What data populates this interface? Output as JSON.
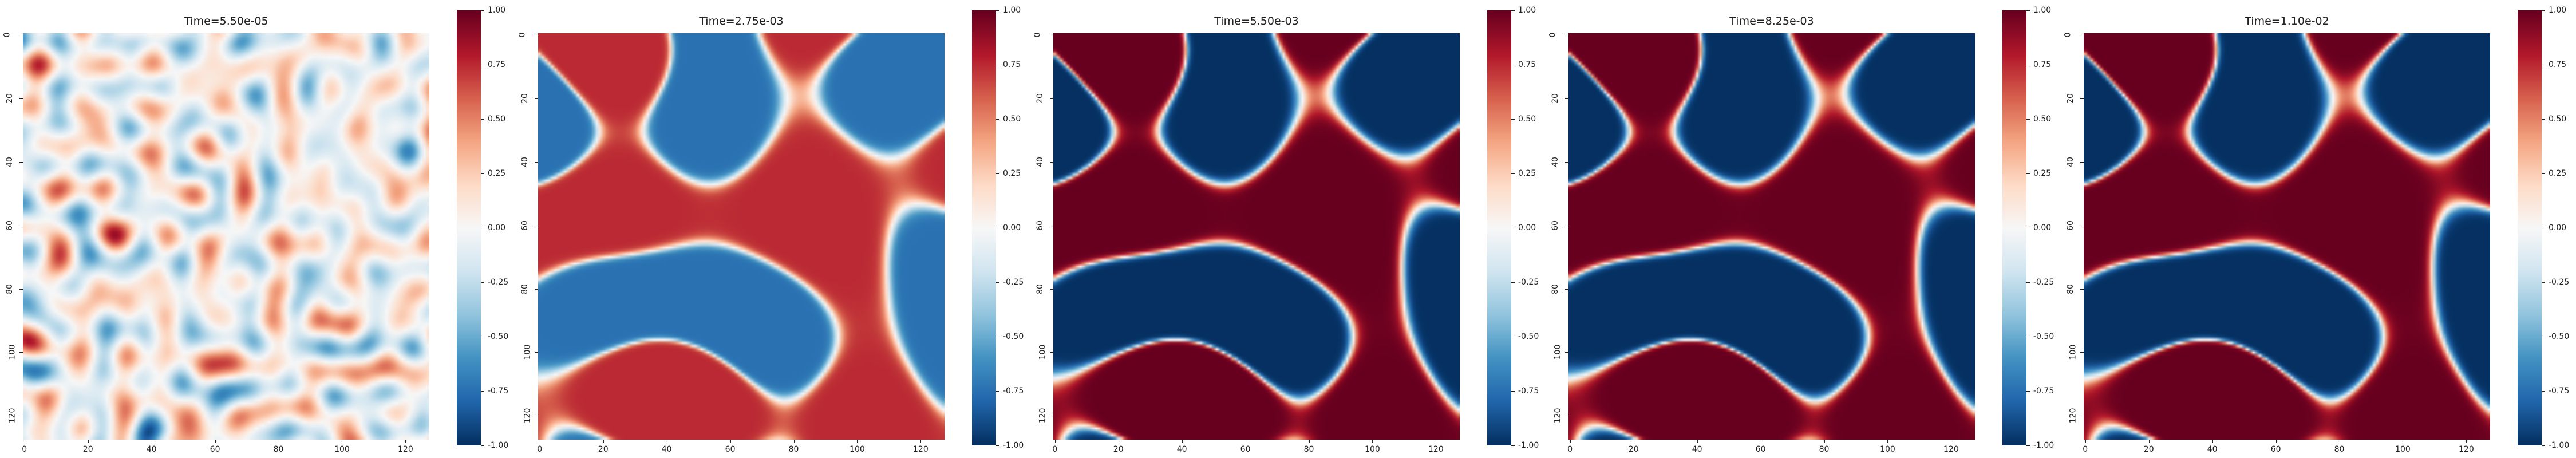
{
  "chart_data": [
    {
      "type": "heatmap",
      "title": "Time=5.50e-05",
      "field": {
        "shape": [
          128,
          128
        ],
        "pattern": "fine noise",
        "amplitude": 0.35
      },
      "x_ticks": [
        "0",
        "20",
        "40",
        "60",
        "80",
        "100",
        "120"
      ],
      "y_ticks": [
        "0",
        "20",
        "40",
        "60",
        "80",
        "100",
        "120"
      ],
      "xlim": [
        0,
        128
      ],
      "ylim": [
        0,
        128
      ],
      "colorbar": {
        "cmap": "RdBu_r",
        "vmin": -1.0,
        "vmax": 1.0,
        "ticks": [
          "1.00",
          "0.75",
          "0.50",
          "0.25",
          "0.00",
          "-0.25",
          "-0.50",
          "-0.75",
          "-1.00"
        ]
      }
    },
    {
      "type": "heatmap",
      "title": "Time=2.75e-03",
      "field": {
        "shape": [
          128,
          128
        ],
        "pattern": "labyrinthine domains",
        "amplitude": 0.75
      },
      "x_ticks": [
        "0",
        "20",
        "40",
        "60",
        "80",
        "100",
        "120"
      ],
      "y_ticks": [
        "0",
        "20",
        "40",
        "60",
        "80",
        "100",
        "120"
      ],
      "xlim": [
        0,
        128
      ],
      "ylim": [
        0,
        128
      ],
      "colorbar": {
        "cmap": "RdBu_r",
        "vmin": -1.0,
        "vmax": 1.0,
        "ticks": [
          "1.00",
          "0.75",
          "0.50",
          "0.25",
          "0.00",
          "-0.25",
          "-0.50",
          "-0.75",
          "-1.00"
        ]
      }
    },
    {
      "type": "heatmap",
      "title": "Time=5.50e-03",
      "field": {
        "shape": [
          128,
          128
        ],
        "pattern": "labyrinthine domains",
        "amplitude": 1.0
      },
      "x_ticks": [
        "0",
        "20",
        "40",
        "60",
        "80",
        "100",
        "120"
      ],
      "y_ticks": [
        "0",
        "20",
        "40",
        "60",
        "80",
        "100",
        "120"
      ],
      "xlim": [
        0,
        128
      ],
      "ylim": [
        0,
        128
      ],
      "colorbar": {
        "cmap": "RdBu_r",
        "vmin": -1.0,
        "vmax": 1.0,
        "ticks": [
          "1.00",
          "0.75",
          "0.50",
          "0.25",
          "0.00",
          "-0.25",
          "-0.50",
          "-0.75",
          "-1.00"
        ]
      }
    },
    {
      "type": "heatmap",
      "title": "Time=8.25e-03",
      "field": {
        "shape": [
          128,
          128
        ],
        "pattern": "labyrinthine domains",
        "amplitude": 1.0
      },
      "x_ticks": [
        "0",
        "20",
        "40",
        "60",
        "80",
        "100",
        "120"
      ],
      "y_ticks": [
        "0",
        "20",
        "40",
        "60",
        "80",
        "100",
        "120"
      ],
      "xlim": [
        0,
        128
      ],
      "ylim": [
        0,
        128
      ],
      "colorbar": {
        "cmap": "RdBu_r",
        "vmin": -1.0,
        "vmax": 1.0,
        "ticks": [
          "1.00",
          "0.75",
          "0.50",
          "0.25",
          "0.00",
          "-0.25",
          "-0.50",
          "-0.75",
          "-1.00"
        ]
      }
    },
    {
      "type": "heatmap",
      "title": "Time=1.10e-02",
      "field": {
        "shape": [
          128,
          128
        ],
        "pattern": "labyrinthine domains",
        "amplitude": 1.0
      },
      "x_ticks": [
        "0",
        "20",
        "40",
        "60",
        "80",
        "100",
        "120"
      ],
      "y_ticks": [
        "0",
        "20",
        "40",
        "60",
        "80",
        "100",
        "120"
      ],
      "xlim": [
        0,
        128
      ],
      "ylim": [
        0,
        128
      ],
      "colorbar": {
        "cmap": "RdBu_r",
        "vmin": -1.0,
        "vmax": 1.0,
        "ticks": [
          "1.00",
          "0.75",
          "0.50",
          "0.25",
          "0.00",
          "-0.25",
          "-0.50",
          "-0.75",
          "-1.00"
        ]
      }
    }
  ],
  "colors": {
    "low": "#053061",
    "mid": "#f7f7f7",
    "high": "#67001f"
  }
}
